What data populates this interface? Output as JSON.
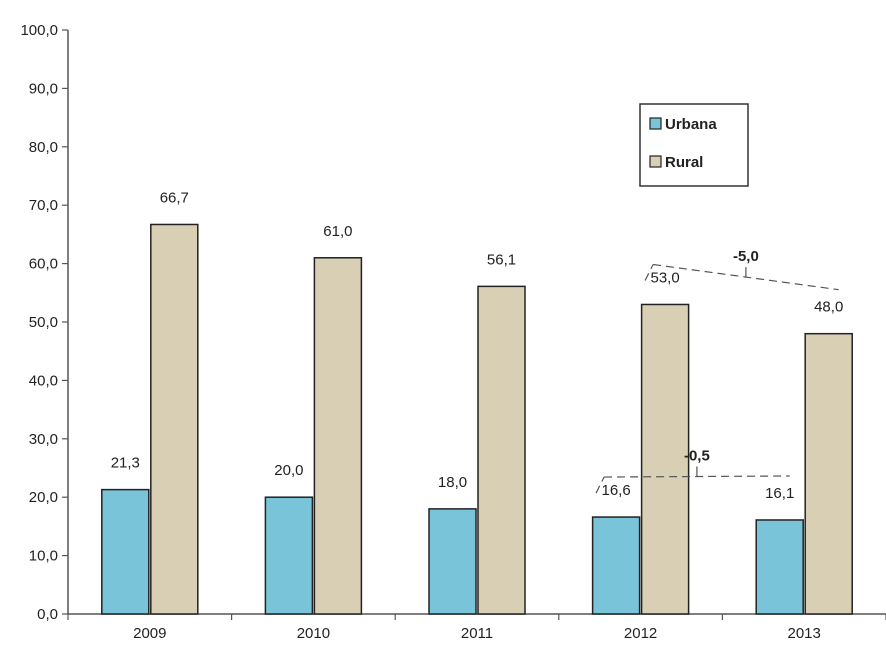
{
  "chart_data": {
    "type": "bar",
    "categories": [
      "2009",
      "2010",
      "2011",
      "2012",
      "2013"
    ],
    "series": [
      {
        "name": "Urbana",
        "color": "#79c4d9",
        "values": [
          21.3,
          20.0,
          18.0,
          16.6,
          16.1
        ],
        "labels": [
          "21,3",
          "20,0",
          "18,0",
          "16,6",
          "16,1"
        ]
      },
      {
        "name": "Rural",
        "color": "#d8cfb5",
        "values": [
          66.7,
          61.0,
          56.1,
          53.0,
          48.0
        ],
        "labels": [
          "66,7",
          "61,0",
          "56,1",
          "53,0",
          "48,0"
        ]
      }
    ],
    "ylim": [
      0,
      100
    ],
    "yticks": [
      "0,0",
      "10,0",
      "20,0",
      "30,0",
      "40,0",
      "50,0",
      "60,0",
      "70,0",
      "80,0",
      "90,0",
      "100,0"
    ],
    "legend_position": "top-right",
    "annotations": [
      {
        "text": "-5,0",
        "series": "Rural",
        "from": "2012",
        "to": "2013"
      },
      {
        "text": "-0,5",
        "series": "Urbana",
        "from": "2012",
        "to": "2013"
      }
    ],
    "grid": false
  }
}
